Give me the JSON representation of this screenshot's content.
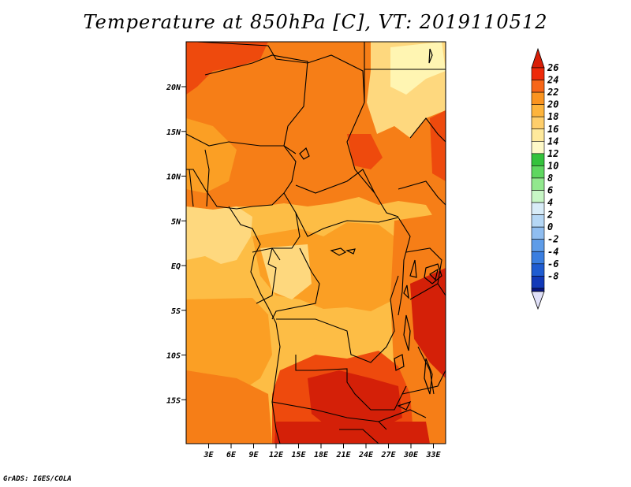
{
  "title": "Temperature at 850hPa [C], VT: 2019110512",
  "credit": "GrADS: IGES/COLA",
  "colors": {
    "c14_16": "#fff5b2",
    "c16_18": "#fed87e",
    "c18_20": "#fdbd45",
    "c20_22": "#fb9f24",
    "c22_24": "#f67e17",
    "c24_26": "#ee4a0d",
    "c26_up": "#d42008"
  },
  "map": {
    "lat_labels": [
      "20N",
      "15N",
      "10N",
      "5N",
      "EQ",
      "5S",
      "10S",
      "15S"
    ],
    "lat_values": [
      20,
      15,
      10,
      5,
      0,
      -5,
      -10,
      -15
    ],
    "lon_labels": [
      "3E",
      "6E",
      "9E",
      "12E",
      "15E",
      "18E",
      "21E",
      "24E",
      "27E",
      "30E",
      "33E"
    ],
    "lon_values": [
      3,
      6,
      9,
      12,
      15,
      18,
      21,
      24,
      27,
      30,
      33
    ]
  },
  "legend": {
    "labels": [
      "26",
      "24",
      "22",
      "20",
      "18",
      "16",
      "14",
      "12",
      "10",
      "8",
      "6",
      "4",
      "2",
      "0",
      "-2",
      "-4",
      "-6",
      "-8"
    ],
    "colors": [
      "#ee2a0a",
      "#f76618",
      "#fa9420",
      "#fdb43c",
      "#fece6b",
      "#fee99c",
      "#fef9c8",
      "#34c23c",
      "#5fd760",
      "#92e88e",
      "#c7f6c5",
      "#d8ecf8",
      "#b5d7f5",
      "#8fbdf0",
      "#5e9ce8",
      "#3a7ee0",
      "#1f5cd1",
      "#1239b8"
    ],
    "top_color": "#d81e07",
    "bottom_color": "#0a1680",
    "bottom_arrow": "#e0e0f8"
  }
}
